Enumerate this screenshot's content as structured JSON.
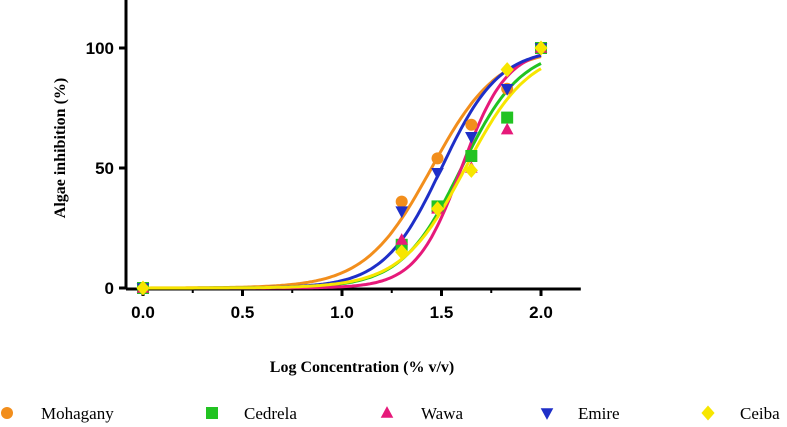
{
  "chart_data": {
    "type": "scatter",
    "title": "",
    "xlabel": "Log Concentration  (% v/v)",
    "ylabel": "Algae inhibition (%)",
    "xlim": [
      0,
      2.2
    ],
    "ylim": [
      0,
      120
    ],
    "x_ticks": [
      "0.0",
      "0.5",
      "1.0",
      "1.5",
      "2.0"
    ],
    "x_tick_values": [
      0,
      0.5,
      1.0,
      1.5,
      2.0
    ],
    "y_ticks": [
      "0",
      "50",
      "100"
    ],
    "y_tick_values": [
      0,
      50,
      100
    ],
    "grid": false,
    "legend_position": "bottom",
    "series": [
      {
        "name": "Mohagany",
        "color": "#F28E1C",
        "marker": "circle",
        "x": [
          0,
          1.3,
          1.48,
          1.65,
          1.83,
          2.0
        ],
        "y": [
          0,
          36,
          54,
          68,
          83,
          100
        ],
        "fit": {
          "log_ec50": 1.45,
          "hill": 2.6
        }
      },
      {
        "name": "Cedrela",
        "color": "#22C322",
        "marker": "square",
        "x": [
          0,
          1.3,
          1.48,
          1.65,
          1.83,
          2.0
        ],
        "y": [
          0,
          18,
          34,
          55,
          71,
          100
        ],
        "fit": {
          "log_ec50": 1.6,
          "hill": 2.9
        }
      },
      {
        "name": "Wawa",
        "color": "#E6197A",
        "marker": "triangle-up",
        "x": [
          0,
          1.3,
          1.48,
          1.65,
          1.83,
          2.0
        ],
        "y": [
          0,
          20,
          33,
          50,
          66,
          100
        ],
        "fit": {
          "log_ec50": 1.6,
          "hill": 3.8
        }
      },
      {
        "name": "Emire",
        "color": "#1E2FC8",
        "marker": "triangle-down",
        "x": [
          0,
          1.3,
          1.48,
          1.65,
          1.83,
          2.0
        ],
        "y": [
          0,
          32,
          48,
          63,
          83,
          100
        ],
        "fit": {
          "log_ec50": 1.5,
          "hill": 3.0
        }
      },
      {
        "name": "Ceiba",
        "color": "#F7E600",
        "marker": "diamond",
        "x": [
          0,
          1.3,
          1.48,
          1.65,
          1.83,
          2.0
        ],
        "y": [
          0,
          15,
          33,
          49,
          91,
          100
        ],
        "fit": {
          "log_ec50": 1.62,
          "hill": 2.7
        }
      }
    ]
  }
}
